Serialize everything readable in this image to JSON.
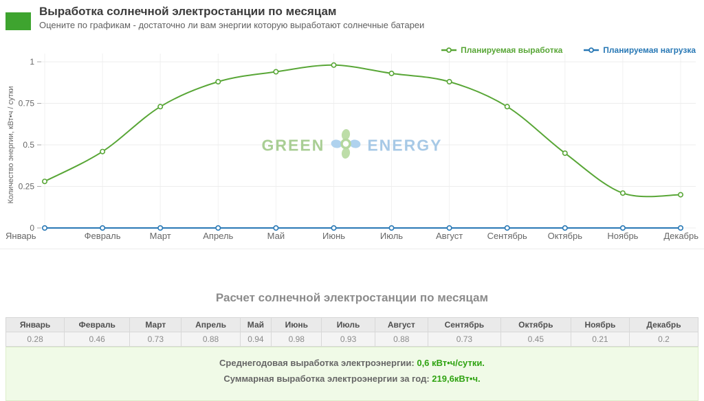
{
  "header": {
    "title": "Выработка солнечной электростанции по месяцам",
    "subtitle": "Оцените по графикам - достаточно ли вам энергии которую выработают солнечные батареи",
    "accent_color": "#3ea42f"
  },
  "chart_data": {
    "type": "line",
    "categories": [
      "Январь",
      "Февраль",
      "Март",
      "Апрель",
      "Май",
      "Июнь",
      "Июль",
      "Август",
      "Сентябрь",
      "Октябрь",
      "Ноябрь",
      "Декабрь"
    ],
    "series": [
      {
        "name": "Планируемая выработка",
        "color": "#58a636",
        "smooth": true,
        "values": [
          0.28,
          0.46,
          0.73,
          0.88,
          0.94,
          0.98,
          0.93,
          0.88,
          0.73,
          0.45,
          0.21,
          0.2
        ]
      },
      {
        "name": "Планируемая нагрузка",
        "color": "#2878b5",
        "smooth": false,
        "values": [
          0,
          0,
          0,
          0,
          0,
          0,
          0,
          0,
          0,
          0,
          0,
          0
        ]
      }
    ],
    "ylabel": "Количество энергии, кВт•ч / сутки",
    "yticks": [
      0,
      0.25,
      0.5,
      0.75,
      1
    ],
    "ylim": [
      0,
      1
    ],
    "grid": true,
    "legend_position": "top-right",
    "watermark": {
      "left": "GREEN",
      "right": "ENERGY"
    }
  },
  "table": {
    "title": "Расчет солнечной электростанции по месяцам",
    "columns": [
      "Январь",
      "Февраль",
      "Март",
      "Апрель",
      "Май",
      "Июнь",
      "Июль",
      "Август",
      "Сентябрь",
      "Октябрь",
      "Ноябрь",
      "Декабрь"
    ],
    "values": [
      "0.28",
      "0.46",
      "0.73",
      "0.88",
      "0.94",
      "0.98",
      "0.93",
      "0.88",
      "0.73",
      "0.45",
      "0.21",
      "0.2"
    ]
  },
  "summary": {
    "line1_label": "Среднегодовая выработка электроэнергии:",
    "line1_value": "0,6 кВт•ч/сутки.",
    "line2_label": "Суммарная выработка электроэнергии за год:",
    "line2_value": "219,6кВт•ч.",
    "value_color": "#2fa312"
  }
}
